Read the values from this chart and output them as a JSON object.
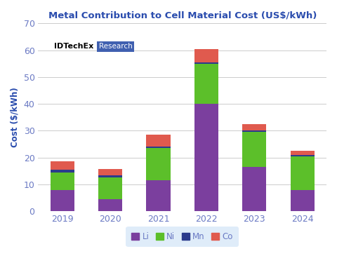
{
  "title": "Metal Contribution to Cell Material Cost (US$/kWh)",
  "ylabel": "Cost ($/kWh)",
  "years": [
    "2019",
    "2020",
    "2021",
    "2022",
    "2023",
    "2024"
  ],
  "Li": [
    8.0,
    4.5,
    11.5,
    40.0,
    16.5,
    8.0
  ],
  "Ni": [
    6.5,
    8.0,
    12.0,
    15.0,
    13.0,
    12.5
  ],
  "Mn": [
    1.0,
    0.8,
    0.5,
    0.5,
    0.5,
    0.5
  ],
  "Co": [
    3.0,
    2.5,
    4.5,
    5.0,
    2.5,
    1.5
  ],
  "colors": {
    "Li": "#7B3F9E",
    "Ni": "#5CBF2A",
    "Mn": "#2B3A8C",
    "Co": "#E05A4E"
  },
  "ylim": [
    0,
    70
  ],
  "yticks": [
    0,
    10,
    20,
    30,
    40,
    50,
    60,
    70
  ],
  "background_color": "#FFFFFF",
  "plot_bg_color": "#FFFFFF",
  "grid_color": "#CCCCCC",
  "title_color": "#2B4DAE",
  "axis_label_color": "#2B4DAE",
  "tick_label_color": "#6B7AC4",
  "legend_bg": "#D8E8F8",
  "idtechex_text": "IDTechEx",
  "research_text": "Research",
  "research_bg": "#4060B0",
  "research_text_color": "#FFFFFF"
}
